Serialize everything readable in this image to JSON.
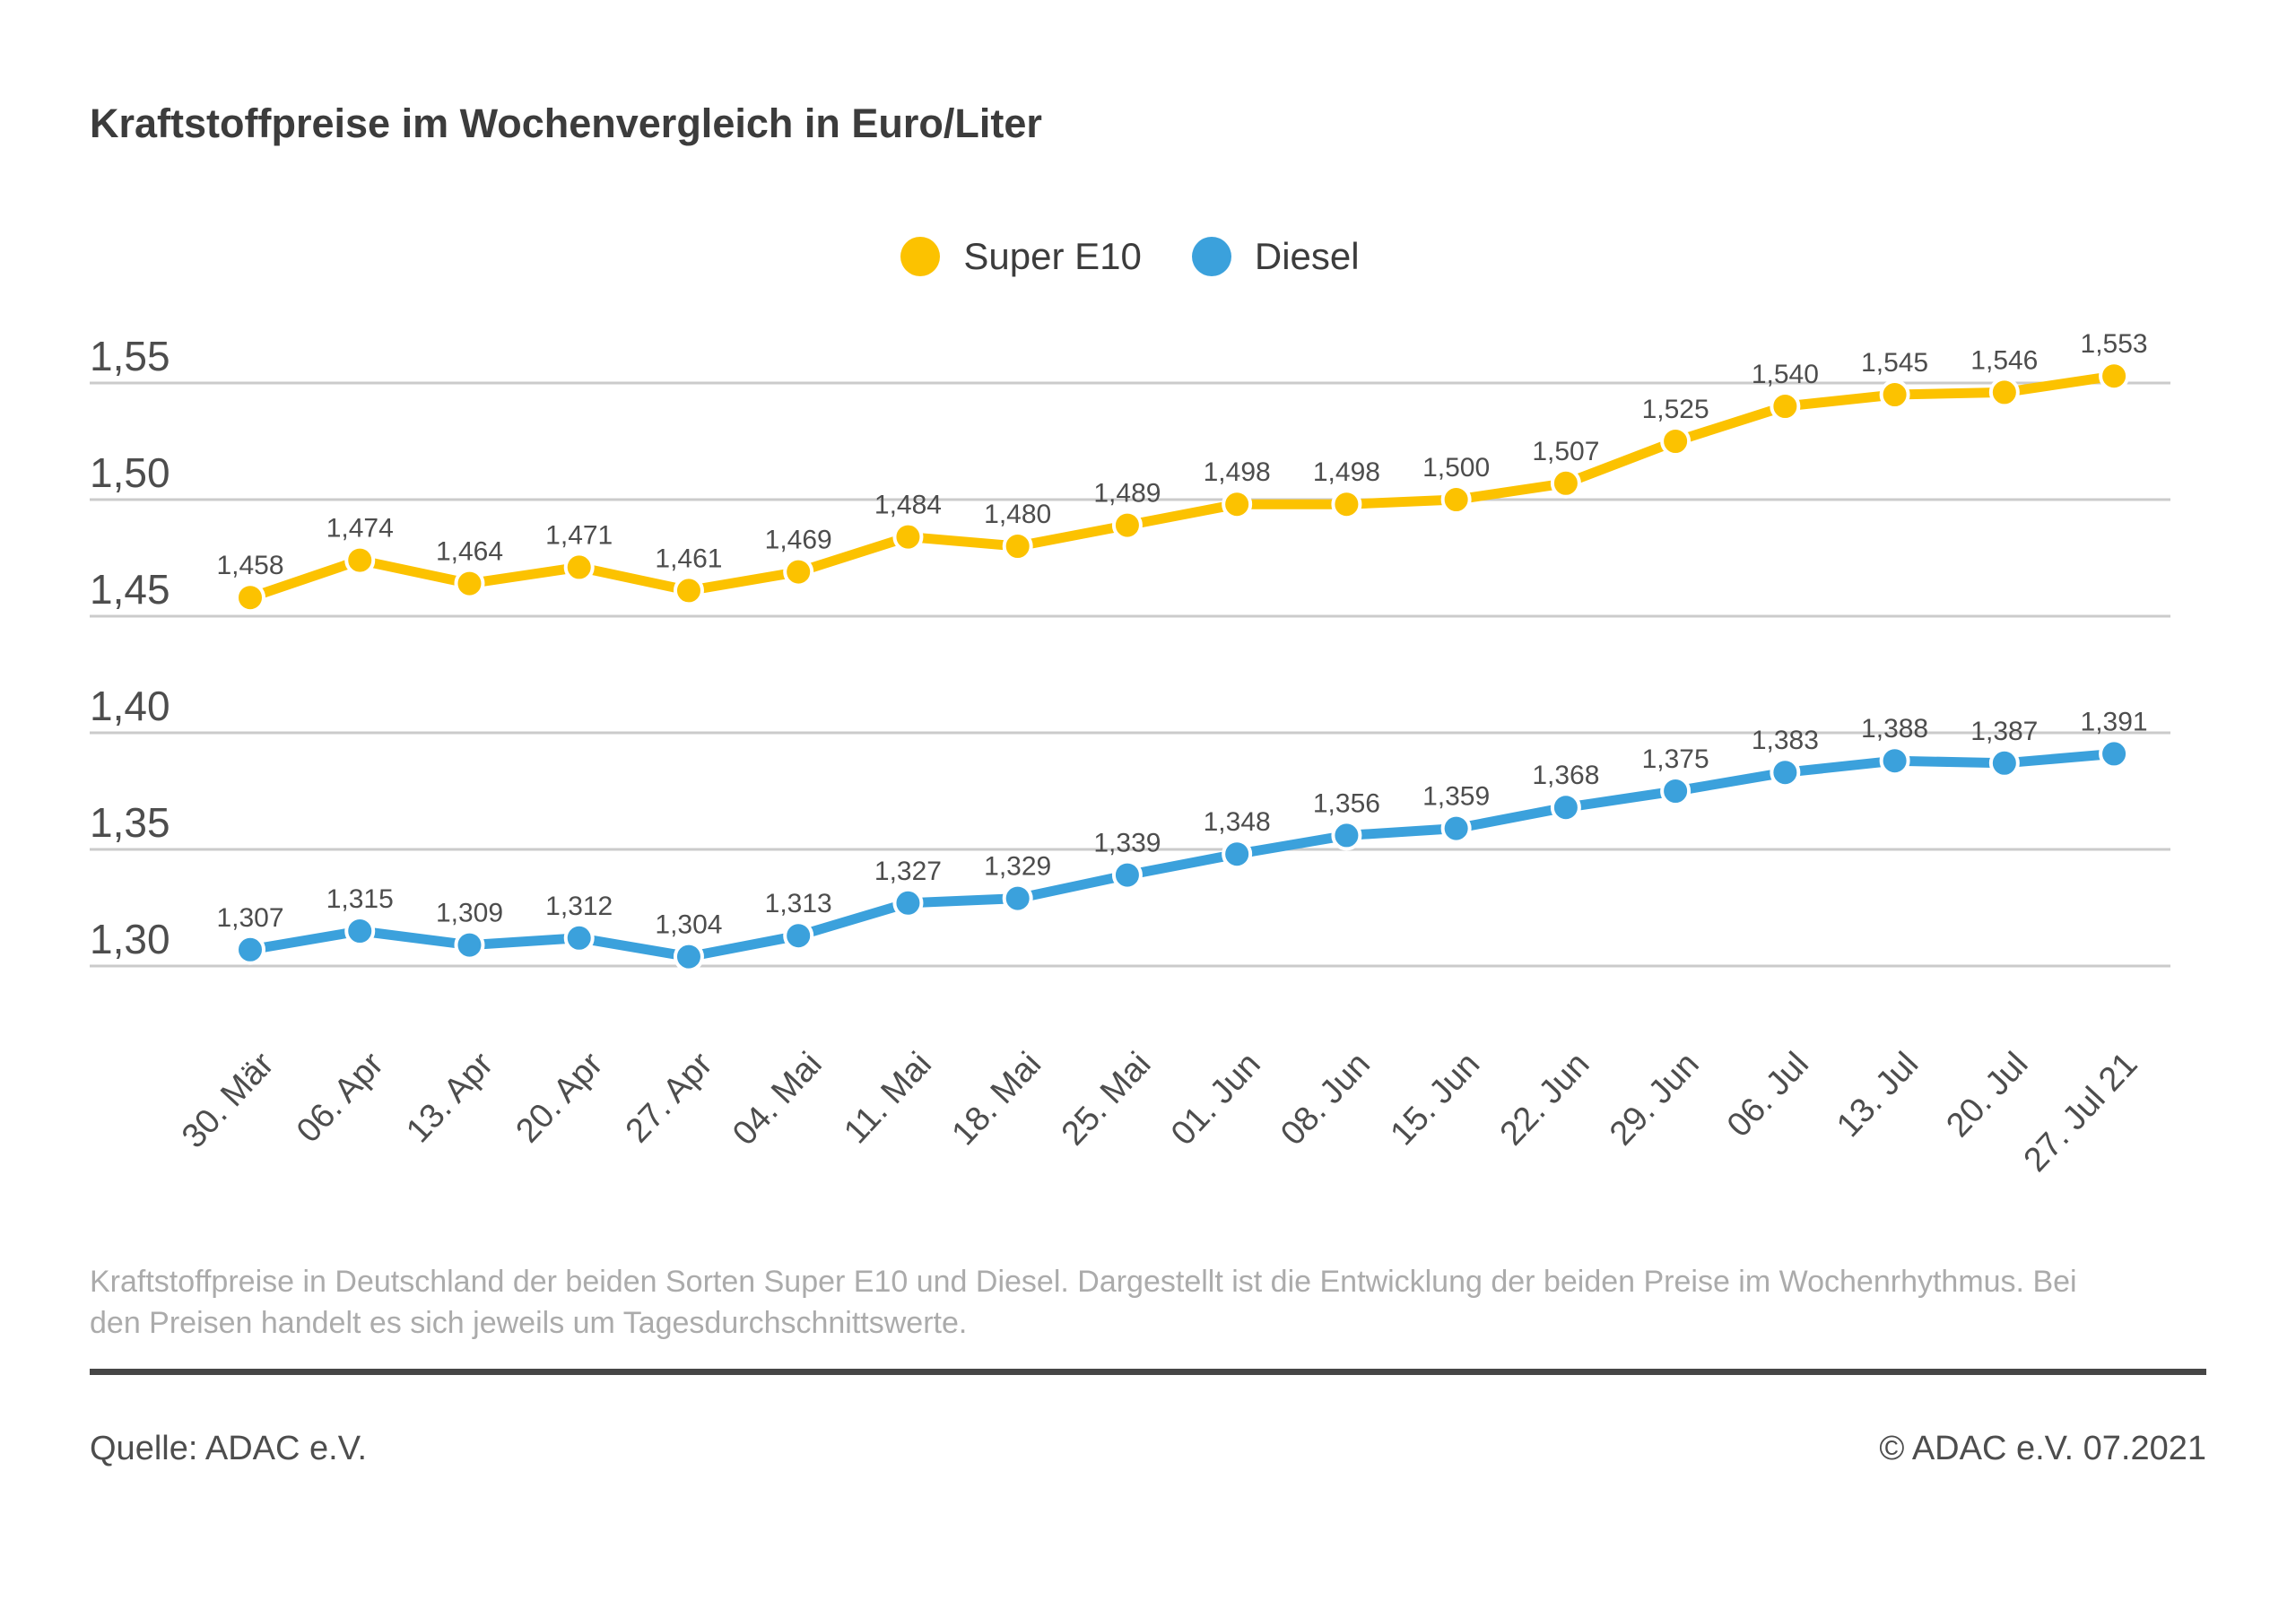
{
  "title": "Kraftstoffpreise im Wochenvergleich in Euro/Liter",
  "chart_data": {
    "type": "line",
    "categories": [
      "30. Mär",
      "06. Apr",
      "13. Apr",
      "20. Apr",
      "27. Apr",
      "04. Mai",
      "11. Mai",
      "18. Mai",
      "25. Mai",
      "01. Jun",
      "08. Jun",
      "15. Jun",
      "22. Jun",
      "29. Jun",
      "06. Jul",
      "13. Jul",
      "20. Jul",
      "27. Jul 21"
    ],
    "series": [
      {
        "name": "Super E10",
        "color": "#fcc200",
        "values": [
          1.458,
          1.474,
          1.464,
          1.471,
          1.461,
          1.469,
          1.484,
          1.48,
          1.489,
          1.498,
          1.498,
          1.5,
          1.507,
          1.525,
          1.54,
          1.545,
          1.546,
          1.553
        ]
      },
      {
        "name": "Diesel",
        "color": "#3ba1dc",
        "values": [
          1.307,
          1.315,
          1.309,
          1.312,
          1.304,
          1.313,
          1.327,
          1.329,
          1.339,
          1.348,
          1.356,
          1.359,
          1.368,
          1.375,
          1.383,
          1.388,
          1.387,
          1.391
        ]
      }
    ],
    "y_ticks": [
      {
        "label": "1,55",
        "value": 1.55
      },
      {
        "label": "1,50",
        "value": 1.5
      },
      {
        "label": "1,45",
        "value": 1.45
      },
      {
        "label": "1,40",
        "value": 1.4
      },
      {
        "label": "1,35",
        "value": 1.35
      },
      {
        "label": "1,30",
        "value": 1.3
      }
    ],
    "ylim": [
      1.28,
      1.57
    ],
    "ylabel": "",
    "xlabel": "",
    "grid": "horizontal",
    "legend_position": "top-center",
    "value_labels": "above-points, comma decimal, 3 digits"
  },
  "footnote": "Kraftstoffpreise in Deutschland der beiden Sorten Super E10 und Diesel. Dargestellt ist die Entwicklung der beiden Preise im Wochenrhythmus. Bei den Preisen handelt es sich jeweils um Tagesdurchschnittswerte.",
  "source_label": "Quelle: ADAC e.V.",
  "copyright_label": "© ADAC e.V. 07.2021",
  "colors": {
    "super_e10": "#fcc200",
    "diesel": "#3ba1dc",
    "gridline": "#cbcbcb",
    "axis_text": "#4d4d4d",
    "title_text": "#3c3c3c",
    "footnote_text": "#ababab",
    "divider": "#464646"
  }
}
